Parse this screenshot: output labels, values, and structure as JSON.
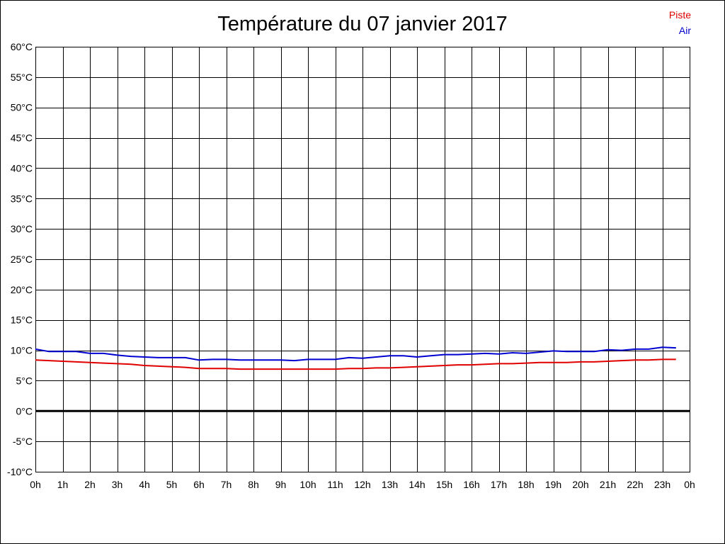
{
  "colors": {
    "piste": "#e00000",
    "air": "#0000d0",
    "grid": "#000000",
    "zero_line": "#000000",
    "background": "#ffffff"
  },
  "chart_data": {
    "type": "line",
    "title": "Température du 07 janvier 2017",
    "xlabel": "",
    "ylabel": "",
    "x_unit": "hour",
    "xlim": [
      0,
      24
    ],
    "ylim": [
      -10,
      60
    ],
    "y_ticks": [
      -10,
      -5,
      0,
      5,
      10,
      15,
      20,
      25,
      30,
      35,
      40,
      45,
      50,
      55,
      60
    ],
    "y_tick_labels": [
      "-10°C",
      "-5°C",
      "0°C",
      "5°C",
      "10°C",
      "15°C",
      "20°C",
      "25°C",
      "30°C",
      "35°C",
      "40°C",
      "45°C",
      "50°C",
      "55°C",
      "60°C"
    ],
    "x_ticks": [
      0,
      1,
      2,
      3,
      4,
      5,
      6,
      7,
      8,
      9,
      10,
      11,
      12,
      13,
      14,
      15,
      16,
      17,
      18,
      19,
      20,
      21,
      22,
      23,
      24
    ],
    "x_tick_labels": [
      "0h",
      "1h",
      "2h",
      "3h",
      "4h",
      "5h",
      "6h",
      "7h",
      "8h",
      "9h",
      "10h",
      "11h",
      "12h",
      "13h",
      "14h",
      "15h",
      "16h",
      "17h",
      "18h",
      "19h",
      "20h",
      "21h",
      "22h",
      "23h",
      "0h"
    ],
    "grid": true,
    "legend_position": "top-right",
    "series": [
      {
        "name": "Piste",
        "color": "#e00000",
        "x": [
          0,
          0.5,
          1,
          1.5,
          2,
          2.5,
          3,
          3.5,
          4,
          4.5,
          5,
          5.5,
          6,
          6.5,
          7,
          7.5,
          8,
          8.5,
          9,
          9.5,
          10,
          10.5,
          11,
          11.5,
          12,
          12.5,
          13,
          13.5,
          14,
          14.5,
          15,
          15.5,
          16,
          16.5,
          17,
          17.5,
          18,
          18.5,
          19,
          19.5,
          20,
          20.5,
          21,
          21.5,
          22,
          22.5,
          23,
          23.5
        ],
        "values": [
          8.4,
          8.3,
          8.2,
          8.1,
          8.0,
          7.9,
          7.8,
          7.7,
          7.5,
          7.4,
          7.3,
          7.2,
          7.0,
          7.0,
          7.0,
          6.9,
          6.9,
          6.9,
          6.9,
          6.9,
          6.9,
          6.9,
          6.9,
          7.0,
          7.0,
          7.1,
          7.1,
          7.2,
          7.3,
          7.4,
          7.5,
          7.6,
          7.6,
          7.7,
          7.8,
          7.8,
          7.9,
          8.0,
          8.0,
          8.0,
          8.1,
          8.1,
          8.2,
          8.3,
          8.4,
          8.4,
          8.5,
          8.5
        ]
      },
      {
        "name": "Air",
        "color": "#0000d0",
        "x": [
          0,
          0.5,
          1,
          1.5,
          2,
          2.5,
          3,
          3.5,
          4,
          4.5,
          5,
          5.5,
          6,
          6.5,
          7,
          7.5,
          8,
          8.5,
          9,
          9.5,
          10,
          10.5,
          11,
          11.5,
          12,
          12.5,
          13,
          13.5,
          14,
          14.5,
          15,
          15.5,
          16,
          16.5,
          17,
          17.5,
          18,
          18.5,
          19,
          19.5,
          20,
          20.5,
          21,
          21.5,
          22,
          22.5,
          23,
          23.5
        ],
        "values": [
          10.2,
          9.8,
          9.8,
          9.8,
          9.5,
          9.5,
          9.2,
          9.0,
          8.9,
          8.8,
          8.8,
          8.8,
          8.4,
          8.5,
          8.5,
          8.4,
          8.4,
          8.4,
          8.4,
          8.3,
          8.5,
          8.5,
          8.5,
          8.8,
          8.7,
          8.9,
          9.1,
          9.1,
          8.9,
          9.1,
          9.3,
          9.3,
          9.4,
          9.5,
          9.4,
          9.6,
          9.5,
          9.7,
          9.9,
          9.8,
          9.8,
          9.8,
          10.1,
          10.0,
          10.2,
          10.2,
          10.5,
          10.4
        ]
      }
    ]
  }
}
